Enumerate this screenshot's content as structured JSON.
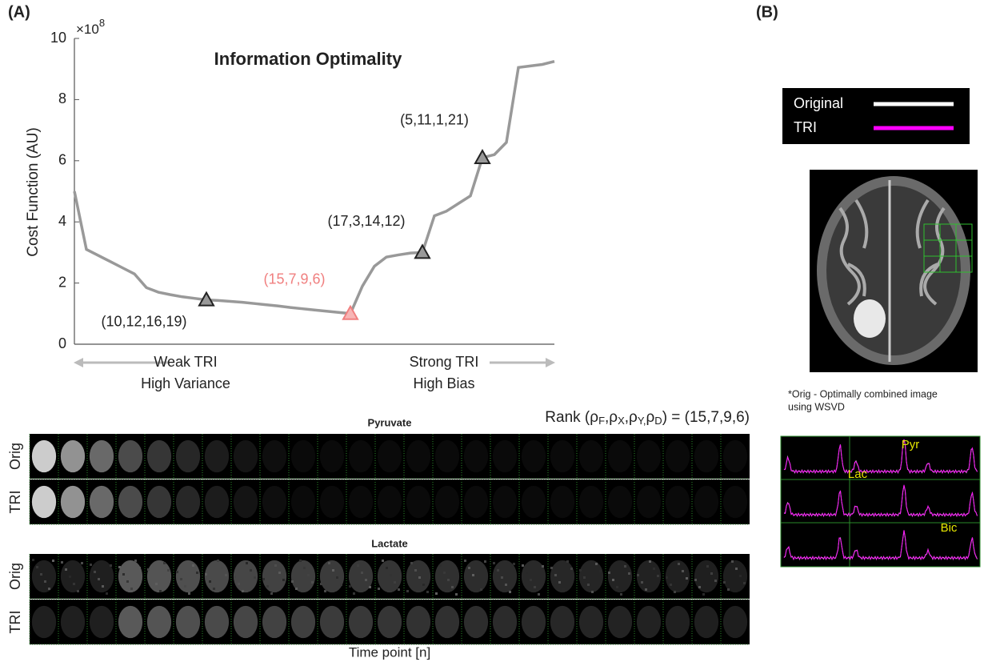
{
  "panel_labels": [
    "(A)",
    "(B)"
  ],
  "chart_data": {
    "type": "line",
    "title": "Information Optimality",
    "y_label": "Cost Function (AU)",
    "y_scale_label": "×10",
    "y_scale_exponent": "8",
    "categories": [
      null,
      null,
      null,
      null,
      null,
      null,
      null,
      null,
      null,
      null,
      null,
      null,
      null,
      null,
      null,
      null,
      null,
      null,
      null,
      null,
      null,
      null,
      null,
      null,
      null,
      null,
      null,
      null,
      null,
      null,
      null,
      null,
      null,
      null,
      null,
      null,
      null,
      null,
      null,
      null,
      null
    ],
    "values": [
      5.0,
      3.1,
      2.9,
      2.7,
      2.5,
      2.3,
      1.85,
      1.7,
      1.62,
      1.55,
      1.5,
      1.45,
      1.43,
      1.4,
      1.37,
      1.33,
      1.29,
      1.25,
      1.2,
      1.16,
      1.12,
      1.08,
      1.04,
      1.0,
      1.9,
      2.55,
      2.85,
      2.92,
      2.98,
      3.0,
      4.2,
      4.35,
      4.6,
      4.85,
      6.1,
      6.2,
      6.6,
      9.05,
      9.1,
      9.15,
      9.25
    ],
    "color": "#999999",
    "ylim": [
      0,
      10
    ],
    "yticks": [
      0,
      2,
      4,
      6,
      8,
      10
    ],
    "grid": false,
    "markers": [
      {
        "label": "(10,12,16,19)",
        "value": 1.45,
        "color": "#222222"
      },
      {
        "label": "(15,7,9,6)",
        "value": 1.0,
        "color": "#f07f7f"
      },
      {
        "label": "(17,3,14,12)",
        "value": 3.0,
        "color": "#222222"
      },
      {
        "label": "(5,11,1,21)",
        "value": 6.1,
        "color": "#222222"
      }
    ],
    "x_annotations": [
      "Weak TRI",
      "High Variance",
      "Strong TRI",
      "High Bias"
    ]
  },
  "image_strips": {
    "rank_label": [
      "Rank (ρ",
      "F",
      ",ρ",
      "X",
      ",ρ",
      "Y,",
      "ρ",
      "D",
      ") = (15,7,9,6)"
    ],
    "groups": [
      {
        "title": "Pyruvate",
        "rows": [
          "Orig",
          "TRI"
        ]
      },
      {
        "title": "Lactate",
        "rows": [
          "Orig",
          "TRI"
        ]
      }
    ],
    "x_label": "Time point [n]"
  },
  "panel_b": {
    "legend": [
      {
        "name": "Original",
        "color": "#ffffff"
      },
      {
        "name": "TRI",
        "color": "#ff00ff"
      }
    ],
    "footnote": [
      "*Orig - Optimally combined image",
      "using WSVD"
    ],
    "peak_labels": [
      "Pyr",
      "Lac",
      "Bic"
    ]
  }
}
